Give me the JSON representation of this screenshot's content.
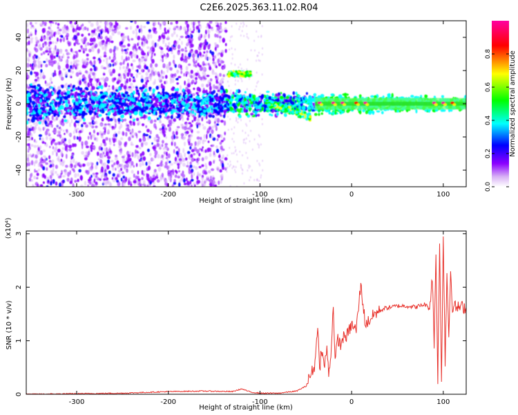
{
  "title": "C2E6.2025.363.11.02.R04",
  "colors": {
    "snr_line": "#e8302a",
    "axis": "#000000"
  },
  "chart_data": [
    {
      "type": "heatmap",
      "xlabel": "Height of straight line (km)",
      "ylabel": "Frequency (Hz)",
      "xlim": [
        -355,
        125
      ],
      "ylim": [
        -50,
        50
      ],
      "x_ticks": [
        -300,
        -200,
        -100,
        0,
        100
      ],
      "y_ticks": [
        -40,
        -20,
        0,
        20,
        40
      ],
      "colorbar": {
        "label": "Normalized spectral amplitude",
        "range": [
          0,
          1
        ],
        "ticks": [
          "0.0",
          "0.2",
          "0.4",
          "0.6",
          "0.8"
        ],
        "tick_values": [
          0.0,
          0.2,
          0.4,
          0.6,
          0.8
        ],
        "colormap": [
          "#ffffff",
          "#d9b3f5",
          "#8b00ff",
          "#0000ff",
          "#00ffff",
          "#00ff00",
          "#ffff00",
          "#ff0000",
          "#ff00a0"
        ]
      },
      "features": {
        "broadband_noise_x_range": [
          -355,
          -137
        ],
        "signal_band": {
          "x_range": [
            -355,
            125
          ],
          "freq_center": 0,
          "freq_halfwidth_start": 12,
          "freq_halfwidth_end": 4
        },
        "echo_segment": {
          "x_range": [
            -135,
            -110
          ],
          "freq": 18
        },
        "descending_branch": {
          "x_range": [
            -90,
            -45
          ],
          "freq_from": 0,
          "freq_to": -8
        },
        "peak_spots_x": [
          -35,
          -20,
          -10,
          5,
          15,
          90,
          100,
          110
        ]
      }
    },
    {
      "type": "line",
      "xlabel": "Height of straight line (km)",
      "ylabel": "SNR (10 * v/v)",
      "y_multiplier": "(x10⁴)",
      "xlim": [
        -355,
        125
      ],
      "ylim": [
        0,
        3.05
      ],
      "x_ticks": [
        -300,
        -200,
        -100,
        0,
        100
      ],
      "y_ticks": [
        0,
        1,
        2,
        3
      ],
      "series": [
        {
          "x": [
            -355,
            -300,
            -250,
            -200,
            -160,
            -130,
            -120,
            -110,
            -100,
            -80,
            -60,
            -50,
            -45,
            -40,
            -37,
            -35,
            -33,
            -30,
            -27,
            -25,
            -22,
            -20,
            -18,
            -15,
            -12,
            -10,
            -5,
            0,
            5,
            10,
            15,
            20,
            25,
            30,
            35,
            40,
            50,
            60,
            70,
            80,
            85,
            88,
            90,
            92,
            94,
            96,
            98,
            100,
            102,
            104,
            106,
            108,
            110,
            115,
            120,
            125
          ],
          "values": [
            0.0,
            0.01,
            0.02,
            0.05,
            0.06,
            0.05,
            0.1,
            0.04,
            0.02,
            0.02,
            0.06,
            0.15,
            0.35,
            0.55,
            1.35,
            0.4,
            0.9,
            0.5,
            0.85,
            0.35,
            0.9,
            1.7,
            0.6,
            1.05,
            0.9,
            1.05,
            1.1,
            1.3,
            1.2,
            2.05,
            1.3,
            1.4,
            1.5,
            1.55,
            1.6,
            1.62,
            1.65,
            1.65,
            1.63,
            1.68,
            1.6,
            2.2,
            0.95,
            2.6,
            0.3,
            2.8,
            0.2,
            3.02,
            0.6,
            2.25,
            1.1,
            2.3,
            1.65,
            1.62,
            1.63,
            1.62
          ]
        }
      ]
    }
  ]
}
